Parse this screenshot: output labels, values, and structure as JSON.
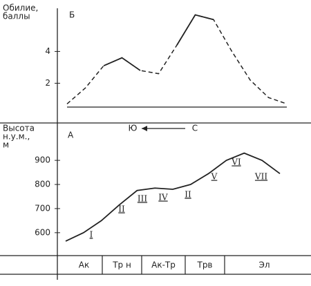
{
  "chart_data": [
    {
      "type": "line",
      "panel_label": "Б",
      "y_label": [
        "Обилие,",
        "баллы"
      ],
      "categories": [
        null,
        null,
        null,
        null,
        null,
        null,
        null,
        null,
        null,
        null,
        null,
        null,
        null
      ],
      "series": [
        {
          "color": "#222",
          "style": "dashed",
          "values": [
            0.7,
            1.7,
            3.1,
            3.6,
            2.8,
            2.6,
            4.4,
            6.3,
            6.0,
            4.0,
            2.2,
            1.1,
            0.7
          ]
        },
        {
          "color": "#222",
          "style": "solid",
          "values": [
            null,
            null,
            3.1,
            3.6,
            2.8,
            null,
            4.4,
            6.3,
            6.0,
            null,
            null,
            null,
            null
          ]
        }
      ],
      "ylim": [
        0.5,
        6.8
      ],
      "yticks": [
        2,
        4
      ]
    },
    {
      "type": "line",
      "panel_label": "А",
      "y_label": [
        "Высота",
        "н.у.м.,",
        "м"
      ],
      "direction": {
        "from": "С",
        "to": "Ю"
      },
      "categories": [
        null,
        null,
        null,
        null,
        null,
        null,
        null,
        null,
        null,
        null,
        null,
        null,
        null
      ],
      "series": [
        {
          "color": "#222",
          "style": "solid",
          "values": [
            565,
            600,
            650,
            715,
            775,
            785,
            780,
            800,
            845,
            900,
            930,
            900,
            845
          ]
        }
      ],
      "ylim": [
        505,
        1035
      ],
      "yticks": [
        600,
        700,
        800,
        900
      ],
      "annotations": [
        "I",
        "II",
        "III",
        "IV",
        "II",
        "V",
        "VI",
        "VII"
      ],
      "zones": [
        "Ак",
        "Тр н",
        "Ак-Тр",
        "Трв",
        "Эл"
      ]
    }
  ]
}
